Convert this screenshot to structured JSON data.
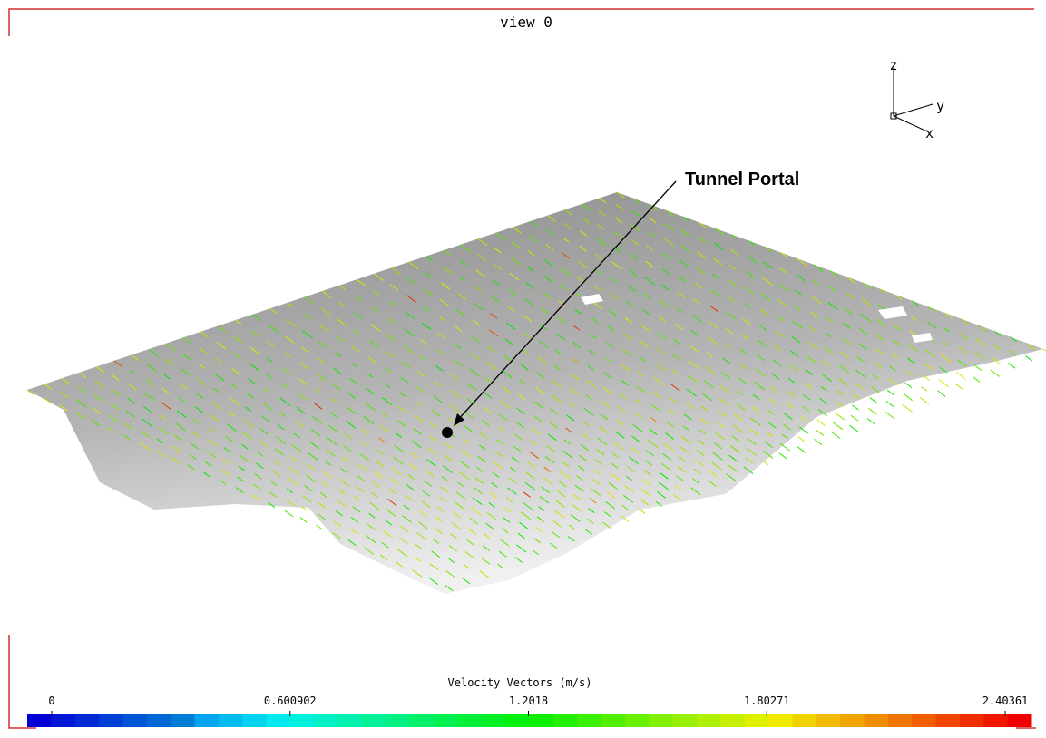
{
  "view": {
    "title": "view 0"
  },
  "axes_triad": {
    "z": "z",
    "y": "y",
    "x": "x"
  },
  "annotation": {
    "label": "Tunnel Portal"
  },
  "colorbar": {
    "title": "Velocity Vectors (m/s)",
    "ticks": [
      0,
      0.600902,
      1.2018,
      1.80271,
      2.40361
    ]
  }
}
